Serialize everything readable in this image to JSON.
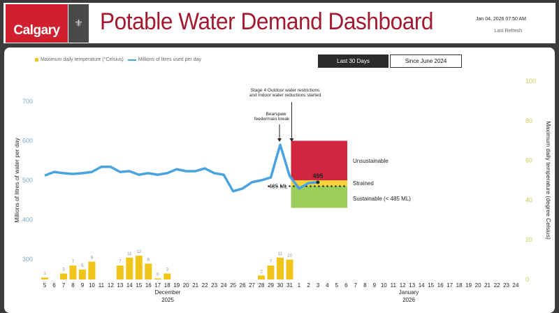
{
  "header": {
    "logo_text": "Calgary",
    "title": "Potable Water Demand Dashboard",
    "refresh_time": "Jan 04, 2026 07:50 AM",
    "refresh_label": "Last Refresh"
  },
  "legend": {
    "temperature": "Maximum daily temperature (°Celsius)",
    "water": "Millions of litres used per day"
  },
  "buttons": {
    "last30": "Last 30 Days",
    "since2024": "Since June 2024"
  },
  "colors": {
    "bar": "#f0c419",
    "line": "#4aa3df",
    "unsustainable": "#d1263f",
    "strained": "#f7d23a",
    "sustainable": "#9ccc5a"
  },
  "chart_data": {
    "type": "bar+line",
    "x": [
      "5",
      "6",
      "7",
      "8",
      "9",
      "10",
      "11",
      "12",
      "13",
      "14",
      "15",
      "16",
      "17",
      "18",
      "19",
      "20",
      "21",
      "22",
      "23",
      "24",
      "25",
      "26",
      "27",
      "28",
      "29",
      "30",
      "31",
      "1",
      "2",
      "3",
      "4",
      "5",
      "6",
      "7",
      "8",
      "9",
      "10",
      "11",
      "12",
      "13",
      "14",
      "15",
      "16",
      "17",
      "18",
      "19",
      "20",
      "21",
      "22",
      "23",
      "24"
    ],
    "x_groups": [
      {
        "label": "December",
        "sub": "2025"
      },
      {
        "label": "January",
        "sub": "2026"
      }
    ],
    "water_series": [
      512,
      521,
      518,
      516,
      518,
      521,
      534,
      534,
      521,
      523,
      514,
      518,
      514,
      518,
      528,
      523,
      523,
      530,
      518,
      514,
      472,
      479,
      495,
      500,
      507,
      590,
      511,
      479,
      493,
      495
    ],
    "temperature_series": [
      1,
      null,
      3,
      7,
      5,
      9,
      null,
      null,
      7,
      11,
      12,
      8,
      0,
      3,
      null,
      null,
      null,
      null,
      null,
      null,
      null,
      null,
      null,
      2,
      7,
      11,
      10
    ],
    "ylabel_left": "Millions of litres of water per day",
    "ylim_left": [
      250,
      750
    ],
    "yticks_left": [
      300,
      400,
      500,
      600,
      700
    ],
    "ylabel_right": "Maximum daily temperature (degree Celsius)",
    "ylim_right": [
      0,
      100
    ],
    "yticks_right": [
      0,
      20,
      40,
      60,
      80,
      100
    ],
    "last_value_label": "495",
    "threshold_label": "485 ML",
    "threshold": 485,
    "bands": [
      {
        "label": "Unsustainable",
        "from": 500,
        "to": 600
      },
      {
        "label": "Strained",
        "from": 485,
        "to": 500
      },
      {
        "label": "Sustainable (< 485 ML)",
        "from": 430,
        "to": 485
      }
    ],
    "annotations": [
      {
        "text": [
          "Bearspaw",
          "feedermain break"
        ],
        "x": "30"
      },
      {
        "text": [
          "Stage 4 Outdoor water restrictions",
          "and Indoor water reductions started"
        ],
        "x": "31"
      }
    ]
  }
}
